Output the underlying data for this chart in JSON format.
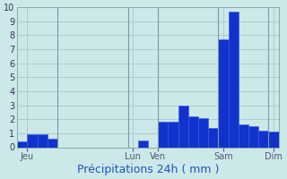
{
  "title": "Précipitations 24h ( mm )",
  "ylim": [
    0,
    10
  ],
  "yticks": [
    0,
    1,
    2,
    3,
    4,
    5,
    6,
    7,
    8,
    9,
    10
  ],
  "background_color": "#cce8e8",
  "grid_color": "#aacece",
  "bar_color": "#1133cc",
  "bar_edge_color": "#3355ee",
  "values": [
    0.4,
    0.9,
    0.9,
    0.6,
    0.0,
    0.0,
    0.0,
    0.0,
    0.0,
    0.0,
    0.0,
    0.0,
    0.5,
    0.0,
    1.8,
    1.8,
    3.0,
    2.2,
    2.1,
    1.4,
    7.7,
    9.7,
    1.6,
    1.5,
    1.2,
    1.1
  ],
  "n_bars": 26,
  "day_labels": [
    "Jeu",
    "Lun",
    "Ven",
    "Sam",
    "Dim"
  ],
  "day_x_positions": [
    1.0,
    11.5,
    14.0,
    20.5,
    25.5
  ],
  "vline_positions": [
    4.0,
    11.0,
    14.0,
    20.0,
    25.0
  ],
  "title_fontsize": 9,
  "tick_fontsize": 7,
  "label_color": "#2255bb"
}
